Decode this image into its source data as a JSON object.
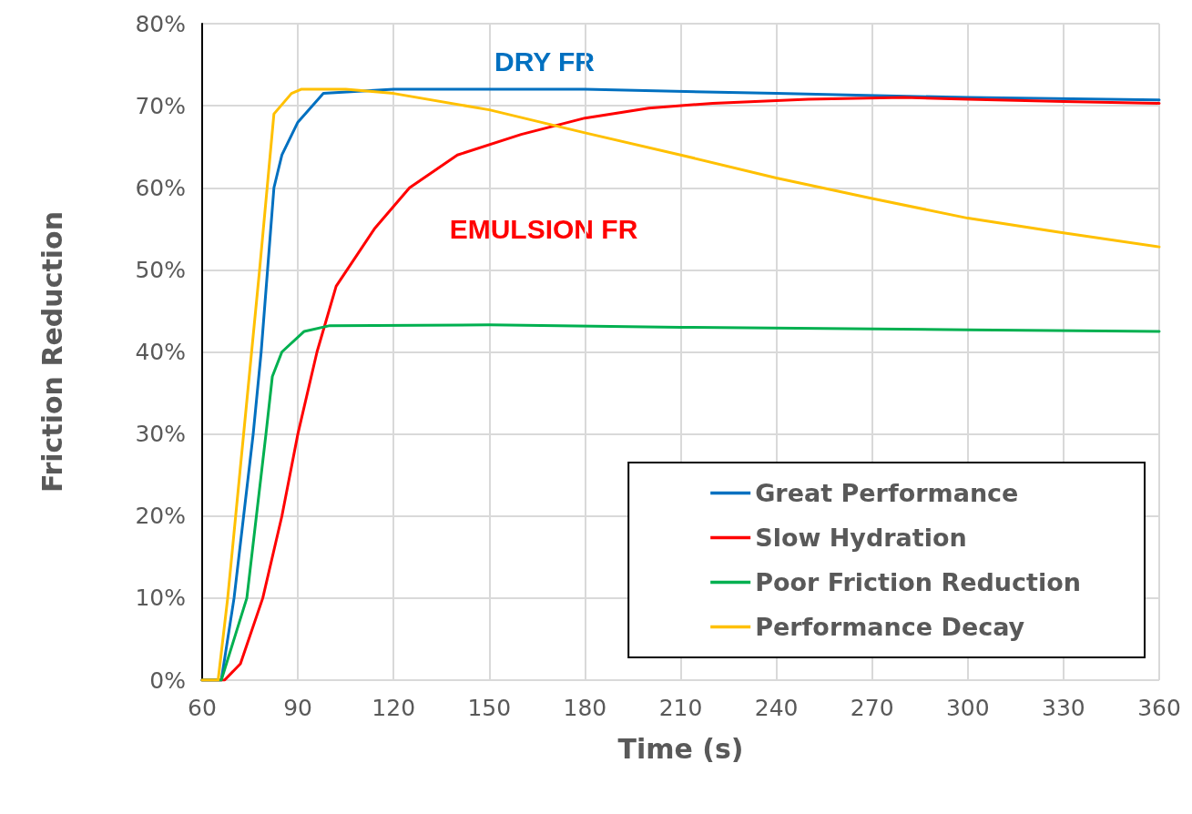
{
  "chart_data": {
    "type": "line",
    "xlabel": "Time (s)",
    "ylabel": "Friction Reduction",
    "xlim": [
      60,
      360
    ],
    "xticks": [
      60,
      90,
      120,
      150,
      180,
      210,
      240,
      270,
      300,
      330,
      360
    ],
    "ylim": [
      0,
      80
    ],
    "yticks": [
      {
        "value": 0,
        "label": "0%"
      },
      {
        "value": 10,
        "label": "10%"
      },
      {
        "value": 20,
        "label": "20%"
      },
      {
        "value": 30,
        "label": "30%"
      },
      {
        "value": 40,
        "label": "40%"
      },
      {
        "value": 50,
        "label": "50%"
      },
      {
        "value": 60,
        "label": "60%"
      },
      {
        "value": 70,
        "label": "70%"
      },
      {
        "value": 80,
        "label": "80%"
      }
    ],
    "grid": true,
    "legend": "bottom right",
    "marker": "none",
    "line_style": "solid",
    "annotations": [
      "DRY FR",
      "EMULSION FR"
    ],
    "series": [
      {
        "name": "Great Performance",
        "color": "#0070c0",
        "x": [
          60,
          66,
          70,
          73,
          76,
          78.5,
          80.5,
          82.5,
          85,
          90,
          98,
          120,
          180,
          240,
          300,
          360
        ],
        "values": [
          0,
          0,
          10,
          20,
          30,
          40,
          50,
          60,
          64,
          68,
          71.5,
          72,
          72,
          71.5,
          71,
          70.7
        ]
      },
      {
        "name": "Slow Hydration",
        "color": "#ff0000",
        "x": [
          60,
          67,
          72,
          79,
          85,
          90,
          96,
          102,
          114,
          125,
          140,
          160,
          180,
          200,
          220,
          250,
          280,
          300,
          330,
          360
        ],
        "values": [
          0,
          0,
          2,
          10,
          20,
          30,
          40,
          48,
          55,
          60,
          64,
          66.5,
          68.5,
          69.7,
          70.3,
          70.8,
          71,
          70.8,
          70.5,
          70.3
        ]
      },
      {
        "name": "Poor Friction Reduction",
        "color": "#00b050",
        "x": [
          60,
          66,
          74,
          77,
          80,
          82,
          85,
          92,
          100,
          150,
          210,
          300,
          360
        ],
        "values": [
          0,
          0,
          10,
          20,
          30,
          37,
          40,
          42.5,
          43.2,
          43.3,
          43,
          42.7,
          42.5
        ]
      },
      {
        "name": "Performance Decay",
        "color": "#ffc000",
        "x": [
          60,
          65,
          68,
          73,
          78,
          82.5,
          88,
          91,
          105,
          120,
          150,
          180,
          210,
          240,
          270,
          300,
          330,
          360
        ],
        "values": [
          0,
          0,
          10,
          30,
          50,
          69,
          71.5,
          72,
          72,
          71.5,
          69.5,
          66.7,
          64,
          61.2,
          58.7,
          56.3,
          54.5,
          52.8
        ]
      }
    ]
  }
}
